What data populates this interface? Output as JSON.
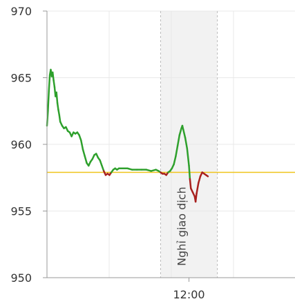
{
  "chart_data": {
    "type": "line",
    "title": "",
    "xlabel": "",
    "ylabel": "",
    "ylim": [
      950,
      970
    ],
    "y_ticks": [
      950,
      955,
      960,
      965,
      970
    ],
    "x_ticks": [
      {
        "label": "12:00",
        "t": 720
      }
    ],
    "x_range": [
      570,
      832
    ],
    "reference_line": {
      "value": 957.9,
      "color": "#f0c419"
    },
    "break_band": {
      "label": "Nghỉ giao dịch",
      "t_start": 690,
      "t_end": 750
    },
    "colors": {
      "up": "#2ea02c",
      "down": "#a8201e",
      "band": "#f2f2f2",
      "grid": "#e8e8e8",
      "axis": "#999999"
    },
    "grid": true,
    "series": [
      {
        "points": [
          [
            570,
            961.4
          ],
          [
            571,
            962.5
          ],
          [
            572,
            964.0
          ],
          [
            573,
            965.2
          ],
          [
            574,
            965.6
          ],
          [
            575,
            965.1
          ],
          [
            576,
            965.4
          ],
          [
            577,
            964.8
          ],
          [
            578,
            964.3
          ],
          [
            579,
            963.6
          ],
          [
            580,
            963.9
          ],
          [
            581,
            963.1
          ],
          [
            582,
            962.6
          ],
          [
            583,
            962.2
          ],
          [
            584,
            961.7
          ],
          [
            586,
            961.4
          ],
          [
            588,
            961.2
          ],
          [
            590,
            961.3
          ],
          [
            592,
            961.0
          ],
          [
            594,
            960.9
          ],
          [
            596,
            960.6
          ],
          [
            598,
            960.9
          ],
          [
            600,
            960.8
          ],
          [
            602,
            960.9
          ],
          [
            604,
            960.7
          ],
          [
            606,
            960.3
          ],
          [
            608,
            959.6
          ],
          [
            610,
            959.1
          ],
          [
            612,
            958.6
          ],
          [
            614,
            958.4
          ],
          [
            616,
            958.7
          ],
          [
            618,
            958.9
          ],
          [
            620,
            959.2
          ],
          [
            622,
            959.3
          ],
          [
            624,
            959.0
          ],
          [
            626,
            958.8
          ],
          [
            628,
            958.4
          ],
          [
            630,
            958.0
          ],
          [
            632,
            957.7
          ],
          [
            634,
            957.8
          ],
          [
            636,
            957.7
          ],
          [
            638,
            957.9
          ],
          [
            640,
            958.1
          ],
          [
            642,
            958.2
          ],
          [
            644,
            958.1
          ],
          [
            646,
            958.2
          ],
          [
            648,
            958.2
          ],
          [
            650,
            958.2
          ],
          [
            655,
            958.2
          ],
          [
            660,
            958.1
          ],
          [
            665,
            958.1
          ],
          [
            670,
            958.1
          ],
          [
            675,
            958.1
          ],
          [
            680,
            958.0
          ],
          [
            685,
            958.1
          ],
          [
            688,
            958.0
          ],
          [
            690,
            957.9
          ],
          [
            692,
            957.8
          ],
          [
            694,
            957.8
          ],
          [
            696,
            957.7
          ],
          [
            698,
            957.9
          ],
          [
            700,
            958.0
          ],
          [
            702,
            958.2
          ],
          [
            704,
            958.5
          ],
          [
            706,
            959.1
          ],
          [
            708,
            959.9
          ],
          [
            710,
            960.7
          ],
          [
            712,
            961.2
          ],
          [
            713,
            961.4
          ],
          [
            714,
            961.1
          ],
          [
            716,
            960.5
          ],
          [
            718,
            959.7
          ],
          [
            720,
            958.4
          ],
          [
            721,
            957.4
          ],
          [
            722,
            956.7
          ],
          [
            724,
            956.4
          ],
          [
            726,
            956.1
          ],
          [
            727,
            955.7
          ],
          [
            728,
            956.3
          ],
          [
            730,
            957.1
          ],
          [
            732,
            957.6
          ],
          [
            734,
            957.9
          ],
          [
            736,
            957.8
          ],
          [
            738,
            957.7
          ],
          [
            740,
            957.6
          ]
        ]
      }
    ]
  }
}
